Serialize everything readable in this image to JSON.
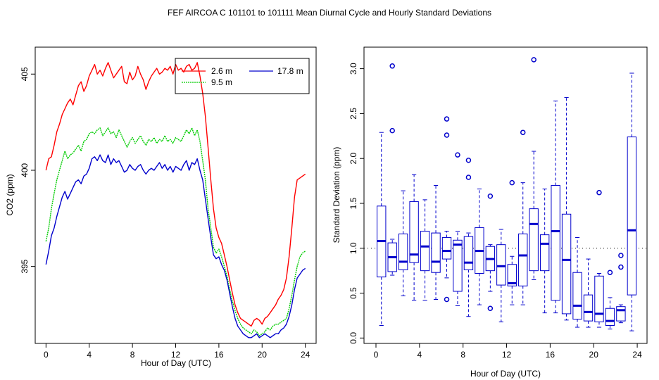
{
  "chart_data": [
    {
      "type": "line",
      "title": "FEF   AIRCOA C   101101 to 101111   Mean Diurnal Cycle and Hourly Standard Deviations",
      "xlabel": "Hour of Day (UTC)",
      "ylabel": "CO2 (ppm)",
      "xlim": [
        -1,
        25
      ],
      "ylim": [
        391,
        406.4
      ],
      "xticks": [
        0,
        4,
        8,
        12,
        16,
        20,
        24
      ],
      "xtick_labels": [
        "0",
        "4",
        "8",
        "12",
        "16",
        "20",
        "24"
      ],
      "yticks": [
        395,
        400,
        405
      ],
      "ytick_labels": [
        "395",
        "400",
        "405"
      ],
      "legend_position": "top-right",
      "series": [
        {
          "name": "2.6 m",
          "color": "#ff0000",
          "x": [
            0,
            0.25,
            0.5,
            0.75,
            1,
            1.25,
            1.5,
            1.75,
            2,
            2.25,
            2.5,
            2.75,
            3,
            3.25,
            3.5,
            3.75,
            4,
            4.25,
            4.5,
            4.75,
            5,
            5.25,
            5.5,
            5.75,
            6,
            6.25,
            6.5,
            6.75,
            7,
            7.25,
            7.5,
            7.75,
            8,
            8.25,
            8.5,
            8.75,
            9,
            9.25,
            9.5,
            9.75,
            10,
            10.25,
            10.5,
            10.75,
            11,
            11.25,
            11.5,
            11.75,
            12,
            12.25,
            12.5,
            12.75,
            13,
            13.25,
            13.5,
            13.75,
            14,
            14.25,
            14.5,
            14.75,
            15,
            15.25,
            15.5,
            15.75,
            16,
            16.25,
            16.5,
            16.75,
            17,
            17.25,
            17.5,
            17.75,
            18,
            18.25,
            18.5,
            18.75,
            19,
            19.25,
            19.5,
            19.75,
            20,
            20.25,
            20.5,
            20.75,
            21,
            21.25,
            21.5,
            21.75,
            22,
            22.25,
            22.5,
            22.75,
            23,
            23.25,
            23.5,
            23.75,
            24
          ],
          "values": [
            400.0,
            400.6,
            400.7,
            401.3,
            402.0,
            402.4,
            402.9,
            403.2,
            403.5,
            403.7,
            403.4,
            403.9,
            404.4,
            404.6,
            404.1,
            404.4,
            404.9,
            405.2,
            405.5,
            405.0,
            405.2,
            404.9,
            405.3,
            405.6,
            405.2,
            404.8,
            405.0,
            405.2,
            405.4,
            404.6,
            404.5,
            405.1,
            404.7,
            404.9,
            405.4,
            405.0,
            404.7,
            404.2,
            404.6,
            404.9,
            405.1,
            405.3,
            405.0,
            405.1,
            405.3,
            405.2,
            405.4,
            405.0,
            405.5,
            405.2,
            405.3,
            405.1,
            405.4,
            405.5,
            405.2,
            405.3,
            405.6,
            404.9,
            404.0,
            402.8,
            401.2,
            399.5,
            398.0,
            397.0,
            396.5,
            396.2,
            395.6,
            395.0,
            394.3,
            393.6,
            393.0,
            392.6,
            392.3,
            392.2,
            392.1,
            392.0,
            391.9,
            392.2,
            392.3,
            392.2,
            392.0,
            392.3,
            392.4,
            392.6,
            392.8,
            393.0,
            393.3,
            393.5,
            393.8,
            394.4,
            395.5,
            397.0,
            398.6,
            399.5,
            399.6,
            399.7,
            399.8
          ]
        },
        {
          "name": "9.5 m",
          "color": "#00cc00",
          "x": [
            0,
            0.25,
            0.5,
            0.75,
            1,
            1.25,
            1.5,
            1.75,
            2,
            2.25,
            2.5,
            2.75,
            3,
            3.25,
            3.5,
            3.75,
            4,
            4.25,
            4.5,
            4.75,
            5,
            5.25,
            5.5,
            5.75,
            6,
            6.25,
            6.5,
            6.75,
            7,
            7.25,
            7.5,
            7.75,
            8,
            8.25,
            8.5,
            8.75,
            9,
            9.25,
            9.5,
            9.75,
            10,
            10.25,
            10.5,
            10.75,
            11,
            11.25,
            11.5,
            11.75,
            12,
            12.25,
            12.5,
            12.75,
            13,
            13.25,
            13.5,
            13.75,
            14,
            14.25,
            14.5,
            14.75,
            15,
            15.25,
            15.5,
            15.75,
            16,
            16.25,
            16.5,
            16.75,
            17,
            17.25,
            17.5,
            17.75,
            18,
            18.25,
            18.5,
            18.75,
            19,
            19.25,
            19.5,
            19.75,
            20,
            20.25,
            20.5,
            20.75,
            21,
            21.25,
            21.5,
            21.75,
            22,
            22.25,
            22.5,
            22.75,
            23,
            23.25,
            23.5,
            23.75,
            24
          ],
          "values": [
            396.3,
            397.0,
            398.0,
            398.8,
            399.5,
            400.0,
            400.5,
            401.0,
            400.6,
            400.8,
            400.9,
            401.1,
            401.3,
            401.0,
            401.5,
            401.6,
            401.9,
            402.0,
            401.9,
            402.1,
            402.2,
            401.8,
            402.0,
            402.2,
            401.9,
            402.0,
            401.7,
            402.1,
            401.8,
            401.5,
            401.2,
            401.5,
            401.7,
            401.4,
            401.6,
            401.8,
            401.5,
            401.3,
            401.6,
            401.5,
            401.7,
            401.4,
            401.6,
            401.5,
            401.8,
            401.5,
            401.6,
            401.4,
            401.7,
            401.6,
            401.5,
            401.8,
            402.1,
            401.9,
            402.2,
            401.8,
            402.1,
            401.5,
            400.5,
            399.5,
            398.0,
            397.0,
            396.0,
            395.7,
            395.9,
            395.5,
            395.0,
            394.5,
            393.8,
            393.2,
            392.7,
            392.3,
            392.0,
            391.8,
            391.7,
            391.6,
            391.5,
            391.7,
            391.6,
            391.4,
            391.5,
            391.6,
            391.8,
            391.7,
            391.9,
            392.0,
            392.0,
            392.1,
            392.2,
            392.3,
            392.8,
            393.5,
            394.3,
            395.0,
            395.5,
            395.7,
            395.8
          ]
        },
        {
          "name": "17.8 m",
          "color": "#0000cc",
          "x": [
            0,
            0.25,
            0.5,
            0.75,
            1,
            1.25,
            1.5,
            1.75,
            2,
            2.25,
            2.5,
            2.75,
            3,
            3.25,
            3.5,
            3.75,
            4,
            4.25,
            4.5,
            4.75,
            5,
            5.25,
            5.5,
            5.75,
            6,
            6.25,
            6.5,
            6.75,
            7,
            7.25,
            7.5,
            7.75,
            8,
            8.25,
            8.5,
            8.75,
            9,
            9.25,
            9.5,
            9.75,
            10,
            10.25,
            10.5,
            10.75,
            11,
            11.25,
            11.5,
            11.75,
            12,
            12.25,
            12.5,
            12.75,
            13,
            13.25,
            13.5,
            13.75,
            14,
            14.25,
            14.5,
            14.75,
            15,
            15.25,
            15.5,
            15.75,
            16,
            16.25,
            16.5,
            16.75,
            17,
            17.25,
            17.5,
            17.75,
            18,
            18.25,
            18.5,
            18.75,
            19,
            19.25,
            19.5,
            19.75,
            20,
            20.25,
            20.5,
            20.75,
            21,
            21.25,
            21.5,
            21.75,
            22,
            22.25,
            22.5,
            22.75,
            23,
            23.25,
            23.5,
            23.75,
            24
          ],
          "values": [
            395.1,
            395.8,
            396.6,
            397.0,
            397.6,
            398.1,
            398.6,
            398.9,
            398.5,
            398.8,
            399.1,
            399.4,
            399.5,
            399.3,
            399.7,
            399.8,
            400.1,
            400.6,
            400.7,
            400.5,
            400.8,
            400.5,
            400.4,
            400.8,
            400.3,
            400.6,
            400.4,
            400.5,
            400.2,
            399.9,
            400.0,
            400.3,
            400.1,
            400.0,
            400.2,
            400.3,
            400.0,
            399.8,
            400.0,
            400.1,
            400.0,
            400.2,
            400.4,
            400.1,
            400.3,
            400.0,
            400.2,
            399.9,
            400.2,
            400.1,
            400.0,
            400.3,
            400.5,
            400.0,
            400.4,
            400.3,
            400.6,
            400.0,
            399.5,
            398.5,
            397.5,
            396.5,
            395.6,
            395.4,
            395.5,
            395.1,
            394.8,
            394.3,
            393.6,
            392.9,
            392.3,
            391.9,
            391.7,
            391.5,
            391.4,
            391.3,
            391.3,
            391.4,
            391.5,
            391.3,
            391.4,
            391.5,
            391.4,
            391.3,
            391.4,
            391.5,
            391.5,
            391.7,
            391.8,
            392.0,
            392.4,
            393.0,
            393.8,
            394.4,
            394.6,
            394.8,
            394.9
          ]
        }
      ]
    },
    {
      "type": "box",
      "xlabel": "Hour of Day (UTC)",
      "ylabel": "Standard Deviation (ppm)",
      "xlim": [
        -1.1,
        24.9
      ],
      "ylim": [
        -0.06,
        3.24
      ],
      "xticks": [
        0,
        4,
        8,
        12,
        16,
        20,
        24
      ],
      "xtick_labels": [
        "0",
        "4",
        "8",
        "12",
        "16",
        "20",
        "24"
      ],
      "yticks": [
        0,
        0.5,
        1,
        1.5,
        2,
        2.5,
        3
      ],
      "ytick_labels": [
        "0.0",
        "0.5",
        "1.0",
        "1.5",
        "2.0",
        "2.5",
        "3.0"
      ],
      "reference_line": 1.0,
      "color": "#0000cc",
      "boxes": [
        {
          "hour": 0.5,
          "min": 0.14,
          "q1": 0.68,
          "median": 1.08,
          "q3": 1.47,
          "max": 2.29,
          "outliers": []
        },
        {
          "hour": 1.5,
          "min": 0.7,
          "q1": 0.74,
          "median": 0.9,
          "q3": 1.06,
          "max": 1.1,
          "outliers": [
            2.31,
            3.03
          ]
        },
        {
          "hour": 2.5,
          "min": 0.47,
          "q1": 0.76,
          "median": 0.85,
          "q3": 1.16,
          "max": 1.64,
          "outliers": []
        },
        {
          "hour": 3.5,
          "min": 0.42,
          "q1": 0.84,
          "median": 0.93,
          "q3": 1.52,
          "max": 1.82,
          "outliers": []
        },
        {
          "hour": 4.5,
          "min": 0.42,
          "q1": 0.75,
          "median": 1.02,
          "q3": 1.19,
          "max": 1.54,
          "outliers": []
        },
        {
          "hour": 5.5,
          "min": 0.43,
          "q1": 0.73,
          "median": 0.85,
          "q3": 1.17,
          "max": 1.7,
          "outliers": []
        },
        {
          "hour": 6.5,
          "min": 0.67,
          "q1": 0.88,
          "median": 0.97,
          "q3": 1.12,
          "max": 1.19,
          "outliers": [
            0.43,
            2.26,
            2.44
          ]
        },
        {
          "hour": 7.5,
          "min": 0.36,
          "q1": 0.52,
          "median": 1.04,
          "q3": 1.09,
          "max": 1.19,
          "outliers": [
            2.04
          ]
        },
        {
          "hour": 8.5,
          "min": 0.24,
          "q1": 0.76,
          "median": 0.84,
          "q3": 1.13,
          "max": 1.17,
          "outliers": [
            1.79,
            1.98
          ]
        },
        {
          "hour": 9.5,
          "min": 0.37,
          "q1": 0.72,
          "median": 0.97,
          "q3": 1.23,
          "max": 1.66,
          "outliers": []
        },
        {
          "hour": 10.5,
          "min": 0.52,
          "q1": 0.75,
          "median": 0.88,
          "q3": 1.02,
          "max": 1.04,
          "outliers": [
            0.33,
            1.58
          ]
        },
        {
          "hour": 11.5,
          "min": 0.18,
          "q1": 0.59,
          "median": 0.8,
          "q3": 1.04,
          "max": 1.21,
          "outliers": []
        },
        {
          "hour": 12.5,
          "min": 0.37,
          "q1": 0.58,
          "median": 0.61,
          "q3": 0.82,
          "max": 0.91,
          "outliers": [
            1.73
          ]
        },
        {
          "hour": 13.5,
          "min": 0.37,
          "q1": 0.58,
          "median": 0.92,
          "q3": 1.16,
          "max": 1.73,
          "outliers": [
            2.29
          ]
        },
        {
          "hour": 14.5,
          "min": 0.65,
          "q1": 0.75,
          "median": 1.27,
          "q3": 1.44,
          "max": 2.08,
          "outliers": [
            3.1
          ]
        },
        {
          "hour": 15.5,
          "min": 0.28,
          "q1": 0.75,
          "median": 1.05,
          "q3": 1.15,
          "max": 1.66,
          "outliers": []
        },
        {
          "hour": 16.5,
          "min": 0.28,
          "q1": 0.42,
          "median": 1.19,
          "q3": 1.7,
          "max": 2.64,
          "outliers": []
        },
        {
          "hour": 17.5,
          "min": 0.2,
          "q1": 0.27,
          "median": 0.87,
          "q3": 1.38,
          "max": 2.68,
          "outliers": []
        },
        {
          "hour": 18.5,
          "min": 0.12,
          "q1": 0.21,
          "median": 0.36,
          "q3": 0.73,
          "max": 1.12,
          "outliers": []
        },
        {
          "hour": 19.5,
          "min": 0.12,
          "q1": 0.19,
          "median": 0.29,
          "q3": 0.48,
          "max": 0.88,
          "outliers": []
        },
        {
          "hour": 20.5,
          "min": 0.12,
          "q1": 0.18,
          "median": 0.27,
          "q3": 0.69,
          "max": 0.72,
          "outliers": [
            1.62
          ]
        },
        {
          "hour": 21.5,
          "min": 0.1,
          "q1": 0.14,
          "median": 0.19,
          "q3": 0.33,
          "max": 0.45,
          "outliers": [
            0.73
          ]
        },
        {
          "hour": 22.5,
          "min": 0.17,
          "q1": 0.19,
          "median": 0.31,
          "q3": 0.35,
          "max": 0.37,
          "outliers": [
            0.79,
            0.92
          ]
        },
        {
          "hour": 23.5,
          "min": 0.08,
          "q1": 0.48,
          "median": 1.2,
          "q3": 2.24,
          "max": 2.95,
          "outliers": []
        }
      ]
    }
  ]
}
